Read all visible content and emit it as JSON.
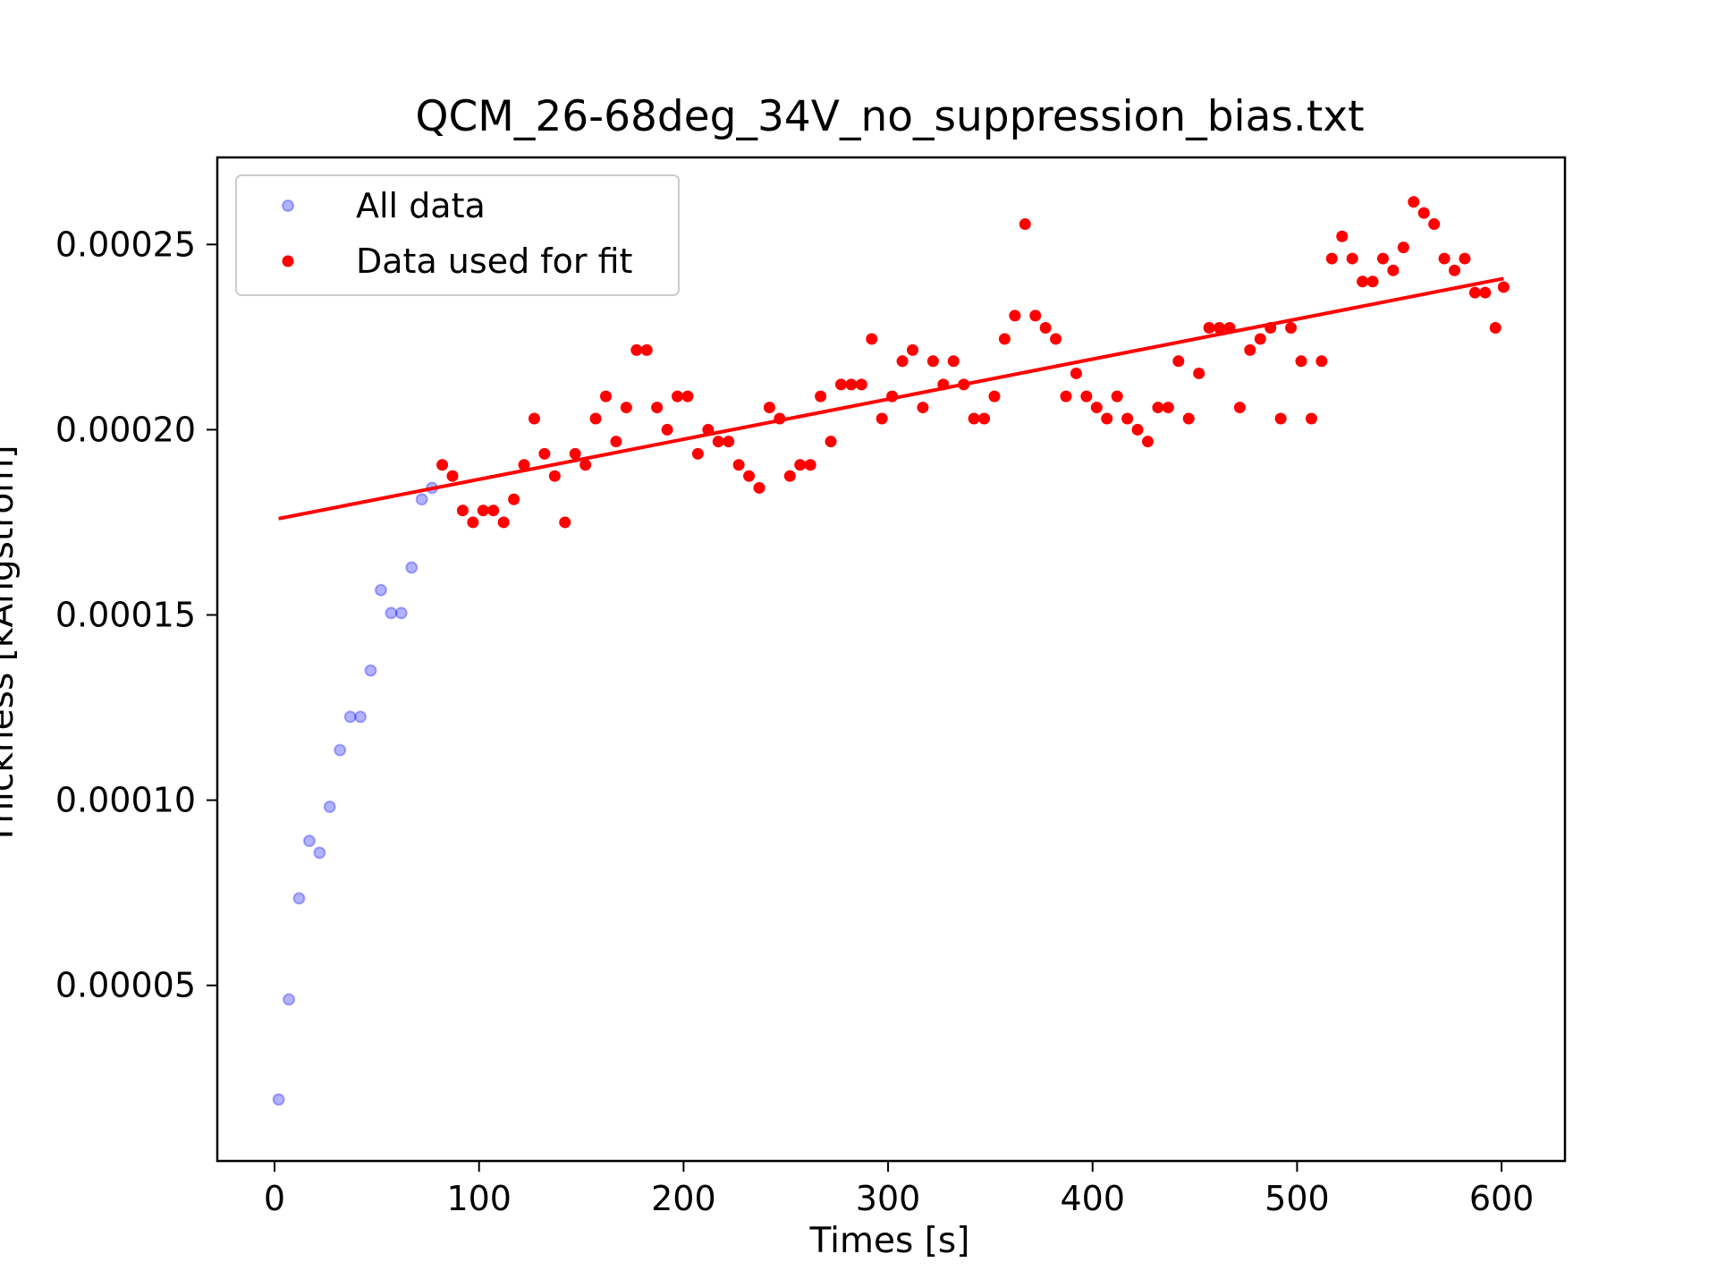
{
  "chart_data": {
    "type": "scatter",
    "title": "QCM_26-68deg_34V_no_suppression_bias.txt",
    "xlabel": "Times [s]",
    "ylabel": "Thickness [kAngstrom]",
    "xlim": [
      -28,
      631
    ],
    "ylim": [
      2.6e-06,
      0.0002735
    ],
    "xticks": [
      0,
      100,
      200,
      300,
      400,
      500,
      600
    ],
    "xtick_labels": [
      "0",
      "100",
      "200",
      "300",
      "400",
      "500",
      "600"
    ],
    "yticks": [
      5e-05,
      0.0001,
      0.00015,
      0.0002,
      0.00025
    ],
    "ytick_labels": [
      "0.00005",
      "0.00010",
      "0.00015",
      "0.00020",
      "0.00025"
    ],
    "grid": false,
    "legend": "upper left",
    "series": [
      {
        "name": "All data",
        "kind": "scatter",
        "color": "#0000ff",
        "alpha": 0.3,
        "x": [
          2,
          7,
          12,
          17,
          22,
          27,
          32,
          37,
          42,
          47,
          52,
          57,
          62,
          67,
          72,
          77
        ],
        "y": [
          1.92e-05,
          4.62e-05,
          7.35e-05,
          8.9e-05,
          8.58e-05,
          9.82e-05,
          0.0001135,
          0.0001225,
          0.0001225,
          0.000135,
          0.0001567,
          0.0001505,
          0.0001505,
          0.0001628,
          0.0001812,
          0.0001843
        ]
      },
      {
        "name": "Data used for fit",
        "kind": "scatter",
        "color": "#ff0000",
        "x": [
          82,
          87,
          92,
          97,
          102,
          107,
          112,
          117,
          122,
          127,
          132,
          137,
          142,
          147,
          152,
          157,
          162,
          167,
          172,
          177,
          182,
          187,
          192,
          197,
          202,
          207,
          212,
          217,
          222,
          227,
          232,
          237,
          242,
          247,
          252,
          257,
          262,
          267,
          272,
          277,
          282,
          287,
          292,
          297,
          302,
          307,
          312,
          317,
          322,
          327,
          332,
          337,
          342,
          347,
          352,
          357,
          362,
          367,
          372,
          377,
          382,
          387,
          392,
          397,
          402,
          407,
          412,
          417,
          422,
          427,
          432,
          437,
          442,
          447,
          452,
          457,
          462,
          467,
          472,
          477,
          482,
          487,
          492,
          497,
          502,
          507,
          512,
          517,
          522,
          527,
          532,
          537,
          542,
          547,
          552,
          557,
          562,
          567,
          572,
          577,
          582,
          587,
          592,
          597,
          601
        ],
        "y": [
          0.0001905,
          0.0001875,
          0.0001782,
          0.000175,
          0.0001782,
          0.0001782,
          0.000175,
          0.0001812,
          0.0001905,
          0.000203,
          0.0001935,
          0.0001875,
          0.000175,
          0.0001935,
          0.0001905,
          0.000203,
          0.000209,
          0.0001968,
          0.000206,
          0.0002215,
          0.0002215,
          0.000206,
          0.0002,
          0.000209,
          0.000209,
          0.0001935,
          0.0002,
          0.0001968,
          0.0001968,
          0.0001905,
          0.0001875,
          0.0001843,
          0.000206,
          0.000203,
          0.0001875,
          0.0001905,
          0.0001905,
          0.000209,
          0.0001968,
          0.0002122,
          0.0002122,
          0.0002122,
          0.0002245,
          0.000203,
          0.000209,
          0.0002185,
          0.0002215,
          0.000206,
          0.0002185,
          0.0002122,
          0.0002185,
          0.0002122,
          0.000203,
          0.000203,
          0.000209,
          0.0002245,
          0.0002308,
          0.0002555,
          0.0002308,
          0.0002275,
          0.0002245,
          0.000209,
          0.0002152,
          0.000209,
          0.000206,
          0.000203,
          0.000209,
          0.000203,
          0.0002,
          0.0001968,
          0.000206,
          0.000206,
          0.0002185,
          0.000203,
          0.0002152,
          0.0002275,
          0.0002275,
          0.0002275,
          0.000206,
          0.0002215,
          0.0002245,
          0.0002275,
          0.000203,
          0.0002275,
          0.0002185,
          0.000203,
          0.0002185,
          0.0002462,
          0.0002522,
          0.0002462,
          0.00024,
          0.00024,
          0.0002462,
          0.000243,
          0.0002492,
          0.0002615,
          0.0002585,
          0.0002555,
          0.0002462,
          0.000243,
          0.0002462,
          0.000237,
          0.000237,
          0.0002275,
          0.0002385
        ]
      },
      {
        "name": "",
        "kind": "line",
        "color": "#ff0000",
        "x": [
          2,
          601
        ],
        "y": [
          0.000176,
          0.0002408
        ]
      }
    ]
  }
}
